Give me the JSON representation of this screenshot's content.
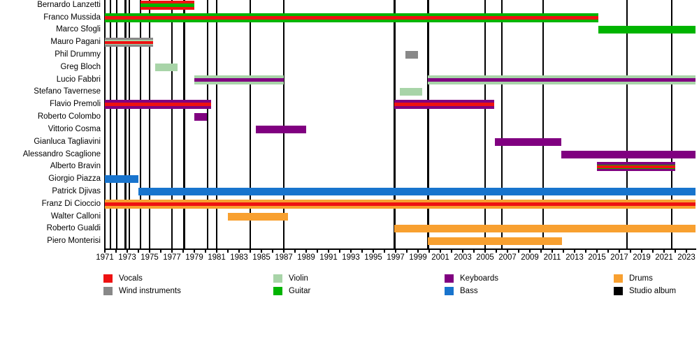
{
  "chart_data": {
    "type": "timeline",
    "title": "",
    "x_axis": {
      "min_year": 1971,
      "max_year": 2023.8,
      "tick_label_years": [
        1971,
        1973,
        1975,
        1977,
        1979,
        1981,
        1983,
        1985,
        1987,
        1989,
        1991,
        1993,
        1995,
        1997,
        1999,
        2001,
        2003,
        2005,
        2007,
        2009,
        2011,
        2013,
        2015,
        2017,
        2019,
        2021,
        2023
      ]
    },
    "colors": {
      "vocals": "#ee1111",
      "wind": "#888888",
      "violin": "#a8d4a8",
      "guitar": "#00b400",
      "keyboards": "#800080",
      "bass": "#1874cd",
      "drums": "#f8a030",
      "album": "#000000"
    },
    "legend": [
      {
        "label": "Vocals",
        "color_key": "vocals"
      },
      {
        "label": "Wind instruments",
        "color_key": "wind"
      },
      {
        "label": "Violin",
        "color_key": "violin"
      },
      {
        "label": "Guitar",
        "color_key": "guitar"
      },
      {
        "label": "Keyboards",
        "color_key": "keyboards"
      },
      {
        "label": "Bass",
        "color_key": "bass"
      },
      {
        "label": "Drums",
        "color_key": "drums"
      },
      {
        "label": "Studio album",
        "color_key": "album"
      }
    ],
    "album_marker_years": [
      1971.5,
      1972.05,
      1972.85,
      1973.2,
      1974.2,
      1975.0,
      1977.0,
      1978.1,
      1980.2,
      1981.0,
      1984.0,
      1987.0,
      1996.9,
      1999.9,
      2005.0,
      2006.5,
      2010.2,
      2017.7,
      2021.7
    ],
    "members": [
      {
        "name": "Bernardo Lanzetti",
        "stripes": [
          "vocals",
          "guitar",
          "vocals"
        ],
        "periods": [
          [
            1974.2,
            1979.0
          ]
        ]
      },
      {
        "name": "Franco Mussida",
        "stripes": [
          "guitar",
          "vocals",
          "guitar"
        ],
        "periods": [
          [
            1971.0,
            2015.1
          ]
        ]
      },
      {
        "name": "Marco Sfogli",
        "stripes": [
          "guitar"
        ],
        "periods": [
          [
            2015.1,
            2023.8
          ]
        ]
      },
      {
        "name": "Mauro Pagani",
        "stripes": [
          "wind",
          "violin",
          "vocals",
          "violin",
          "wind"
        ],
        "periods": [
          [
            1971.0,
            1975.3
          ]
        ]
      },
      {
        "name": "Phil Drummy",
        "stripes": [
          "wind"
        ],
        "periods": [
          [
            1997.9,
            1999.0
          ]
        ]
      },
      {
        "name": "Greg Bloch",
        "stripes": [
          "violin"
        ],
        "periods": [
          [
            1975.5,
            1977.5
          ]
        ]
      },
      {
        "name": "Lucio Fabbri",
        "stripes": [
          "violin",
          "keyboards",
          "violin"
        ],
        "periods": [
          [
            1979.0,
            1987.0
          ],
          [
            1999.9,
            2023.8
          ]
        ]
      },
      {
        "name": "Stefano Tavernese",
        "stripes": [
          "violin"
        ],
        "periods": [
          [
            1997.4,
            1999.4
          ]
        ]
      },
      {
        "name": "Flavio Premoli",
        "stripes": [
          "keyboards",
          "vocals",
          "keyboards"
        ],
        "periods": [
          [
            1971.0,
            1980.5
          ],
          [
            1996.9,
            2005.8
          ]
        ]
      },
      {
        "name": "Roberto Colombo",
        "stripes": [
          "keyboards"
        ],
        "periods": [
          [
            1979.0,
            1980.1
          ]
        ]
      },
      {
        "name": "Vittorio Cosma",
        "stripes": [
          "keyboards"
        ],
        "periods": [
          [
            1984.5,
            1989.0
          ]
        ]
      },
      {
        "name": "Gianluca Tagliavini",
        "stripes": [
          "keyboards"
        ],
        "periods": [
          [
            2005.9,
            2011.8
          ]
        ]
      },
      {
        "name": "Alessandro Scaglione",
        "stripes": [
          "keyboards"
        ],
        "periods": [
          [
            2011.8,
            2023.8
          ]
        ]
      },
      {
        "name": "Alberto Bravin",
        "stripes": [
          "keyboards",
          "guitar",
          "vocals",
          "guitar",
          "keyboards"
        ],
        "periods": [
          [
            2015.0,
            2022.0
          ]
        ]
      },
      {
        "name": "Giorgio Piazza",
        "stripes": [
          "bass"
        ],
        "periods": [
          [
            1971.0,
            1974.0
          ]
        ]
      },
      {
        "name": "Patrick Djivas",
        "stripes": [
          "bass"
        ],
        "periods": [
          [
            1974.0,
            2023.8
          ]
        ]
      },
      {
        "name": "Franz Di Cioccio",
        "stripes": [
          "drums",
          "vocals",
          "drums"
        ],
        "periods": [
          [
            1971.0,
            2023.8
          ]
        ]
      },
      {
        "name": "Walter Calloni",
        "stripes": [
          "drums"
        ],
        "periods": [
          [
            1982.0,
            1987.4
          ]
        ]
      },
      {
        "name": "Roberto Gualdi",
        "stripes": [
          "drums"
        ],
        "periods": [
          [
            1996.9,
            2023.8
          ]
        ]
      },
      {
        "name": "Piero Monterisi",
        "stripes": [
          "drums"
        ],
        "periods": [
          [
            1999.9,
            2011.9
          ]
        ]
      }
    ]
  }
}
